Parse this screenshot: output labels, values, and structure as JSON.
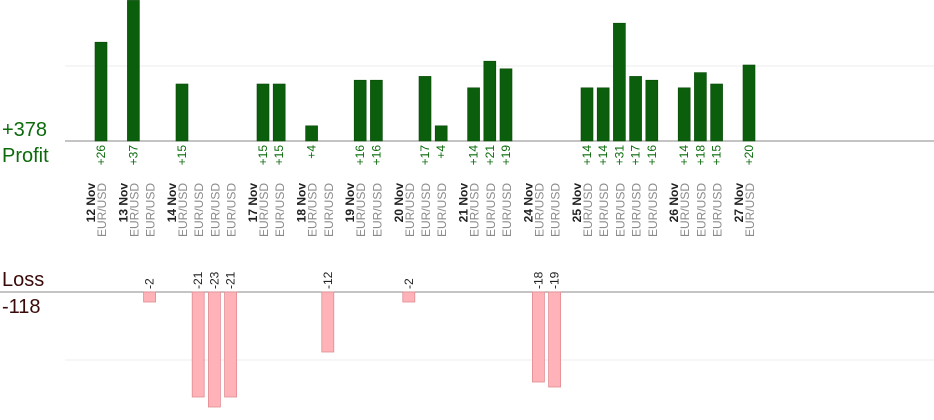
{
  "summary": {
    "profit_total": "+378",
    "profit_label": "Profit",
    "loss_label": "Loss",
    "loss_total": "-118"
  },
  "colors": {
    "profit_bar": "#0b5e0b",
    "profit_bar_edge": "#0a4a0a",
    "profit_text": "#0b6b0b",
    "loss_bar": "#ffb3b8",
    "loss_bar_edge": "#e08c92",
    "loss_text": "#222222",
    "date_text": "#222222",
    "symbol_text": "#8a8a8a",
    "baseline": "#888888",
    "grid": "#ececec"
  },
  "chart_data": {
    "type": "bar",
    "note_sign": "profit bars go up, loss bars go down",
    "ylim_profit": [
      0,
      20
    ],
    "ylim_loss": [
      -20,
      0
    ],
    "grid": true,
    "slots": [
      {
        "date": "12 Nov",
        "symbol": "EUR/USD",
        "value": 26
      },
      {
        "date": "",
        "symbol": "",
        "value": null
      },
      {
        "date": "13 Nov",
        "symbol": "EUR/USD",
        "value": 37
      },
      {
        "date": "",
        "symbol": "EUR/USD",
        "value": -2
      },
      {
        "date": "",
        "symbol": "",
        "value": null
      },
      {
        "date": "14 Nov",
        "symbol": "EUR/USD",
        "value": 15
      },
      {
        "date": "",
        "symbol": "EUR/USD",
        "value": -21
      },
      {
        "date": "",
        "symbol": "EUR/USD",
        "value": -23
      },
      {
        "date": "",
        "symbol": "EUR/USD",
        "value": -21
      },
      {
        "date": "",
        "symbol": "",
        "value": null
      },
      {
        "date": "17 Nov",
        "symbol": "EUR/USD",
        "value": 15
      },
      {
        "date": "",
        "symbol": "EUR/USD",
        "value": 15
      },
      {
        "date": "",
        "symbol": "",
        "value": null
      },
      {
        "date": "18 Nov",
        "symbol": "EUR/USD",
        "value": 4
      },
      {
        "date": "",
        "symbol": "EUR/USD",
        "value": -12
      },
      {
        "date": "",
        "symbol": "",
        "value": null
      },
      {
        "date": "19 Nov",
        "symbol": "EUR/USD",
        "value": 16
      },
      {
        "date": "",
        "symbol": "EUR/USD",
        "value": 16
      },
      {
        "date": "",
        "symbol": "",
        "value": null
      },
      {
        "date": "20 Nov",
        "symbol": "EUR/USD",
        "value": -2
      },
      {
        "date": "",
        "symbol": "EUR/USD",
        "value": 17
      },
      {
        "date": "",
        "symbol": "EUR/USD",
        "value": 4
      },
      {
        "date": "",
        "symbol": "",
        "value": null
      },
      {
        "date": "21 Nov",
        "symbol": "EUR/USD",
        "value": 14
      },
      {
        "date": "",
        "symbol": "EUR/USD",
        "value": 21
      },
      {
        "date": "",
        "symbol": "EUR/USD",
        "value": 19
      },
      {
        "date": "",
        "symbol": "",
        "value": null
      },
      {
        "date": "24 Nov",
        "symbol": "EUR/USD",
        "value": -18
      },
      {
        "date": "",
        "symbol": "EUR/USD",
        "value": -19
      },
      {
        "date": "",
        "symbol": "",
        "value": null
      },
      {
        "date": "25 Nov",
        "symbol": "EUR/USD",
        "value": 14
      },
      {
        "date": "",
        "symbol": "EUR/USD",
        "value": 14
      },
      {
        "date": "",
        "symbol": "EUR/USD",
        "value": 31
      },
      {
        "date": "",
        "symbol": "EUR/USD",
        "value": 17
      },
      {
        "date": "",
        "symbol": "EUR/USD",
        "value": 16
      },
      {
        "date": "",
        "symbol": "",
        "value": null
      },
      {
        "date": "26 Nov",
        "symbol": "EUR/USD",
        "value": 14
      },
      {
        "date": "",
        "symbol": "EUR/USD",
        "value": 18
      },
      {
        "date": "",
        "symbol": "EUR/USD",
        "value": 15
      },
      {
        "date": "",
        "symbol": "",
        "value": null
      },
      {
        "date": "27 Nov",
        "symbol": "EUR/USD",
        "value": 20
      }
    ]
  }
}
